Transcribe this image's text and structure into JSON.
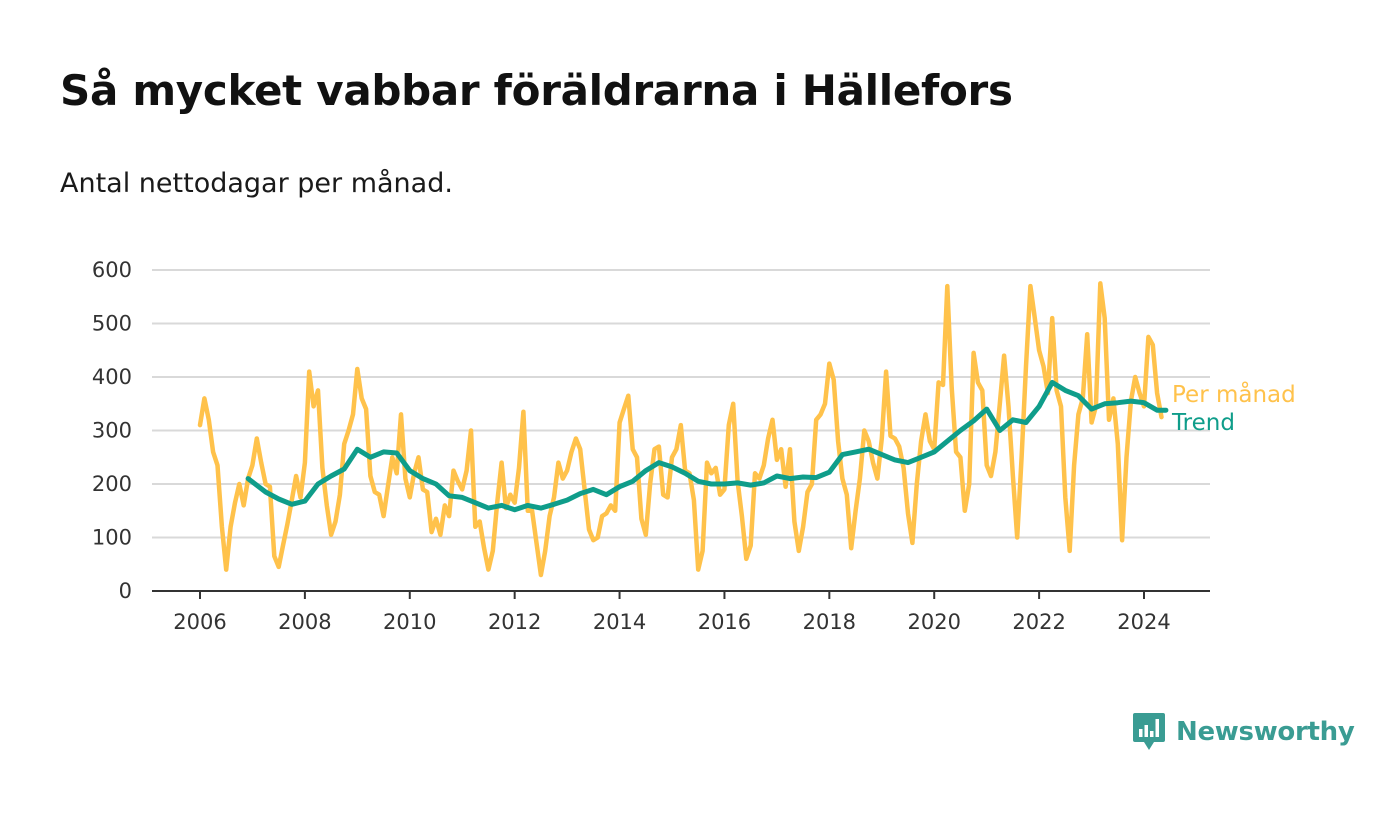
{
  "title": "Så mycket vabbar föräldrarna i Hällefors",
  "subtitle": "Antal nettodagar per månad.",
  "brand": {
    "name": "Newsworthy",
    "icon": "newsworthy-logo-icon",
    "color": "#3a9c93"
  },
  "chart_data": {
    "type": "line",
    "xlim": [
      2006,
      2024.6
    ],
    "ylim": [
      0,
      600
    ],
    "y_ticks": [
      0,
      100,
      200,
      300,
      400,
      500,
      600
    ],
    "x_ticks": [
      2006,
      2008,
      2010,
      2012,
      2014,
      2016,
      2018,
      2020,
      2022,
      2024
    ],
    "grid": true,
    "legend": "right-end labels",
    "series": [
      {
        "name": "Per månad",
        "color": "#ffc24b",
        "x": [
          2006.0,
          2006.083,
          2006.167,
          2006.25,
          2006.333,
          2006.417,
          2006.5,
          2006.583,
          2006.667,
          2006.75,
          2006.833,
          2006.917,
          2007.0,
          2007.083,
          2007.167,
          2007.25,
          2007.333,
          2007.417,
          2007.5,
          2007.583,
          2007.667,
          2007.75,
          2007.833,
          2007.917,
          2008.0,
          2008.083,
          2008.167,
          2008.25,
          2008.333,
          2008.417,
          2008.5,
          2008.583,
          2008.667,
          2008.75,
          2008.833,
          2008.917,
          2009.0,
          2009.083,
          2009.167,
          2009.25,
          2009.333,
          2009.417,
          2009.5,
          2009.583,
          2009.667,
          2009.75,
          2009.833,
          2009.917,
          2010.0,
          2010.083,
          2010.167,
          2010.25,
          2010.333,
          2010.417,
          2010.5,
          2010.583,
          2010.667,
          2010.75,
          2010.833,
          2010.917,
          2011.0,
          2011.083,
          2011.167,
          2011.25,
          2011.333,
          2011.417,
          2011.5,
          2011.583,
          2011.667,
          2011.75,
          2011.833,
          2011.917,
          2012.0,
          2012.083,
          2012.167,
          2012.25,
          2012.333,
          2012.417,
          2012.5,
          2012.583,
          2012.667,
          2012.75,
          2012.833,
          2012.917,
          2013.0,
          2013.083,
          2013.167,
          2013.25,
          2013.333,
          2013.417,
          2013.5,
          2013.583,
          2013.667,
          2013.75,
          2013.833,
          2013.917,
          2014.0,
          2014.083,
          2014.167,
          2014.25,
          2014.333,
          2014.417,
          2014.5,
          2014.583,
          2014.667,
          2014.75,
          2014.833,
          2014.917,
          2015.0,
          2015.083,
          2015.167,
          2015.25,
          2015.333,
          2015.417,
          2015.5,
          2015.583,
          2015.667,
          2015.75,
          2015.833,
          2015.917,
          2016.0,
          2016.083,
          2016.167,
          2016.25,
          2016.333,
          2016.417,
          2016.5,
          2016.583,
          2016.667,
          2016.75,
          2016.833,
          2016.917,
          2017.0,
          2017.083,
          2017.167,
          2017.25,
          2017.333,
          2017.417,
          2017.5,
          2017.583,
          2017.667,
          2017.75,
          2017.833,
          2017.917,
          2018.0,
          2018.083,
          2018.167,
          2018.25,
          2018.333,
          2018.417,
          2018.5,
          2018.583,
          2018.667,
          2018.75,
          2018.833,
          2018.917,
          2019.0,
          2019.083,
          2019.167,
          2019.25,
          2019.333,
          2019.417,
          2019.5,
          2019.583,
          2019.667,
          2019.75,
          2019.833,
          2019.917,
          2020.0,
          2020.083,
          2020.167,
          2020.25,
          2020.333,
          2020.417,
          2020.5,
          2020.583,
          2020.667,
          2020.75,
          2020.833,
          2020.917,
          2021.0,
          2021.083,
          2021.167,
          2021.25,
          2021.333,
          2021.417,
          2021.5,
          2021.583,
          2021.667,
          2021.75,
          2021.833,
          2021.917,
          2022.0,
          2022.083,
          2022.167,
          2022.25,
          2022.333,
          2022.417,
          2022.5,
          2022.583,
          2022.667,
          2022.75,
          2022.833,
          2022.917,
          2023.0,
          2023.083,
          2023.167,
          2023.25,
          2023.333,
          2023.417,
          2023.5,
          2023.583,
          2023.667,
          2023.75,
          2023.833,
          2023.917,
          2024.0,
          2024.083,
          2024.167,
          2024.25,
          2024.333
        ],
        "values": [
          310,
          360,
          320,
          260,
          235,
          120,
          40,
          120,
          165,
          200,
          160,
          210,
          235,
          285,
          240,
          200,
          195,
          65,
          45,
          85,
          125,
          170,
          215,
          175,
          240,
          410,
          345,
          375,
          230,
          160,
          105,
          130,
          180,
          275,
          300,
          330,
          415,
          360,
          340,
          215,
          185,
          180,
          140,
          195,
          250,
          220,
          330,
          210,
          175,
          220,
          250,
          190,
          185,
          110,
          135,
          105,
          160,
          140,
          225,
          205,
          190,
          225,
          300,
          120,
          130,
          80,
          40,
          75,
          165,
          240,
          155,
          180,
          165,
          230,
          335,
          150,
          150,
          90,
          30,
          75,
          140,
          175,
          240,
          210,
          225,
          260,
          285,
          265,
          190,
          115,
          95,
          100,
          140,
          145,
          160,
          150,
          315,
          340,
          365,
          265,
          250,
          135,
          105,
          200,
          265,
          270,
          180,
          175,
          250,
          265,
          310,
          225,
          220,
          170,
          40,
          75,
          240,
          220,
          230,
          180,
          190,
          310,
          350,
          205,
          140,
          60,
          85,
          220,
          210,
          235,
          285,
          320,
          245,
          265,
          195,
          265,
          130,
          75,
          120,
          185,
          200,
          320,
          330,
          350,
          425,
          395,
          280,
          210,
          180,
          80,
          150,
          210,
          300,
          280,
          240,
          210,
          285,
          410,
          290,
          285,
          270,
          230,
          145,
          90,
          200,
          280,
          330,
          280,
          265,
          390,
          385,
          570,
          380,
          260,
          250,
          150,
          200,
          445,
          390,
          375,
          235,
          215,
          260,
          350,
          440,
          345,
          215,
          100,
          250,
          420,
          570,
          510,
          450,
          420,
          370,
          510,
          375,
          345,
          175,
          75,
          235,
          330,
          360,
          480,
          315,
          345,
          575,
          510,
          320,
          360,
          275,
          95,
          250,
          355,
          400,
          370,
          345,
          475,
          460,
          370,
          325
        ]
      },
      {
        "name": "Trend",
        "color": "#0f9d8a",
        "x": [
          2006.917,
          2007.25,
          2007.5,
          2007.75,
          2008.0,
          2008.25,
          2008.5,
          2008.75,
          2009.0,
          2009.25,
          2009.5,
          2009.75,
          2010.0,
          2010.25,
          2010.5,
          2010.75,
          2011.0,
          2011.25,
          2011.5,
          2011.75,
          2012.0,
          2012.25,
          2012.5,
          2012.75,
          2013.0,
          2013.25,
          2013.5,
          2013.75,
          2014.0,
          2014.25,
          2014.5,
          2014.75,
          2015.0,
          2015.25,
          2015.5,
          2015.75,
          2016.0,
          2016.25,
          2016.5,
          2016.75,
          2017.0,
          2017.25,
          2017.5,
          2017.75,
          2018.0,
          2018.25,
          2018.5,
          2018.75,
          2019.0,
          2019.25,
          2019.5,
          2019.75,
          2020.0,
          2020.25,
          2020.5,
          2020.75,
          2021.0,
          2021.25,
          2021.5,
          2021.75,
          2022.0,
          2022.25,
          2022.5,
          2022.75,
          2023.0,
          2023.25,
          2023.5,
          2023.75,
          2024.0,
          2024.25,
          2024.417
        ],
        "values": [
          210,
          185,
          172,
          162,
          168,
          200,
          215,
          228,
          265,
          250,
          260,
          258,
          225,
          210,
          200,
          178,
          175,
          165,
          155,
          160,
          152,
          160,
          155,
          162,
          170,
          182,
          190,
          180,
          195,
          205,
          225,
          240,
          232,
          220,
          205,
          200,
          200,
          202,
          198,
          202,
          215,
          210,
          213,
          212,
          222,
          255,
          260,
          265,
          255,
          245,
          240,
          250,
          260,
          280,
          300,
          318,
          340,
          300,
          320,
          315,
          345,
          390,
          375,
          365,
          340,
          350,
          352,
          355,
          352,
          338,
          338
        ]
      }
    ]
  }
}
